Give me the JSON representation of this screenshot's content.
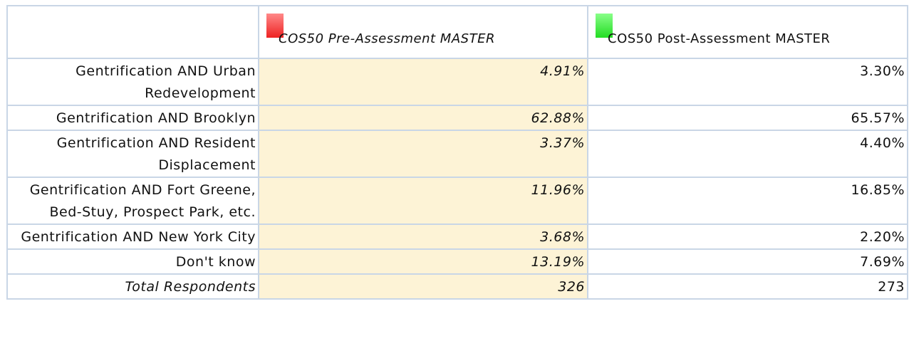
{
  "table": {
    "columns": [
      "COS50 Pre-Assessment MASTER",
      "COS50 Post-Assessment MASTER"
    ],
    "rows": [
      [
        "Gentrification AND Urban Redevelopment",
        "4.91%",
        "3.30%"
      ],
      [
        "Gentrification AND Brooklyn",
        "62.88%",
        "65.57%"
      ],
      [
        "Gentrification AND Resident Displacement",
        "3.37%",
        "4.40%"
      ],
      [
        "Gentrification AND Fort Greene, Bed-Stuy, Prospect Park, etc.",
        "11.96%",
        "16.85%"
      ],
      [
        "Gentrification AND New York City",
        "3.68%",
        "2.20%"
      ],
      [
        "Don't know",
        "13.19%",
        "7.69%"
      ]
    ],
    "total": [
      "Total Respondents",
      "326",
      "273"
    ]
  }
}
